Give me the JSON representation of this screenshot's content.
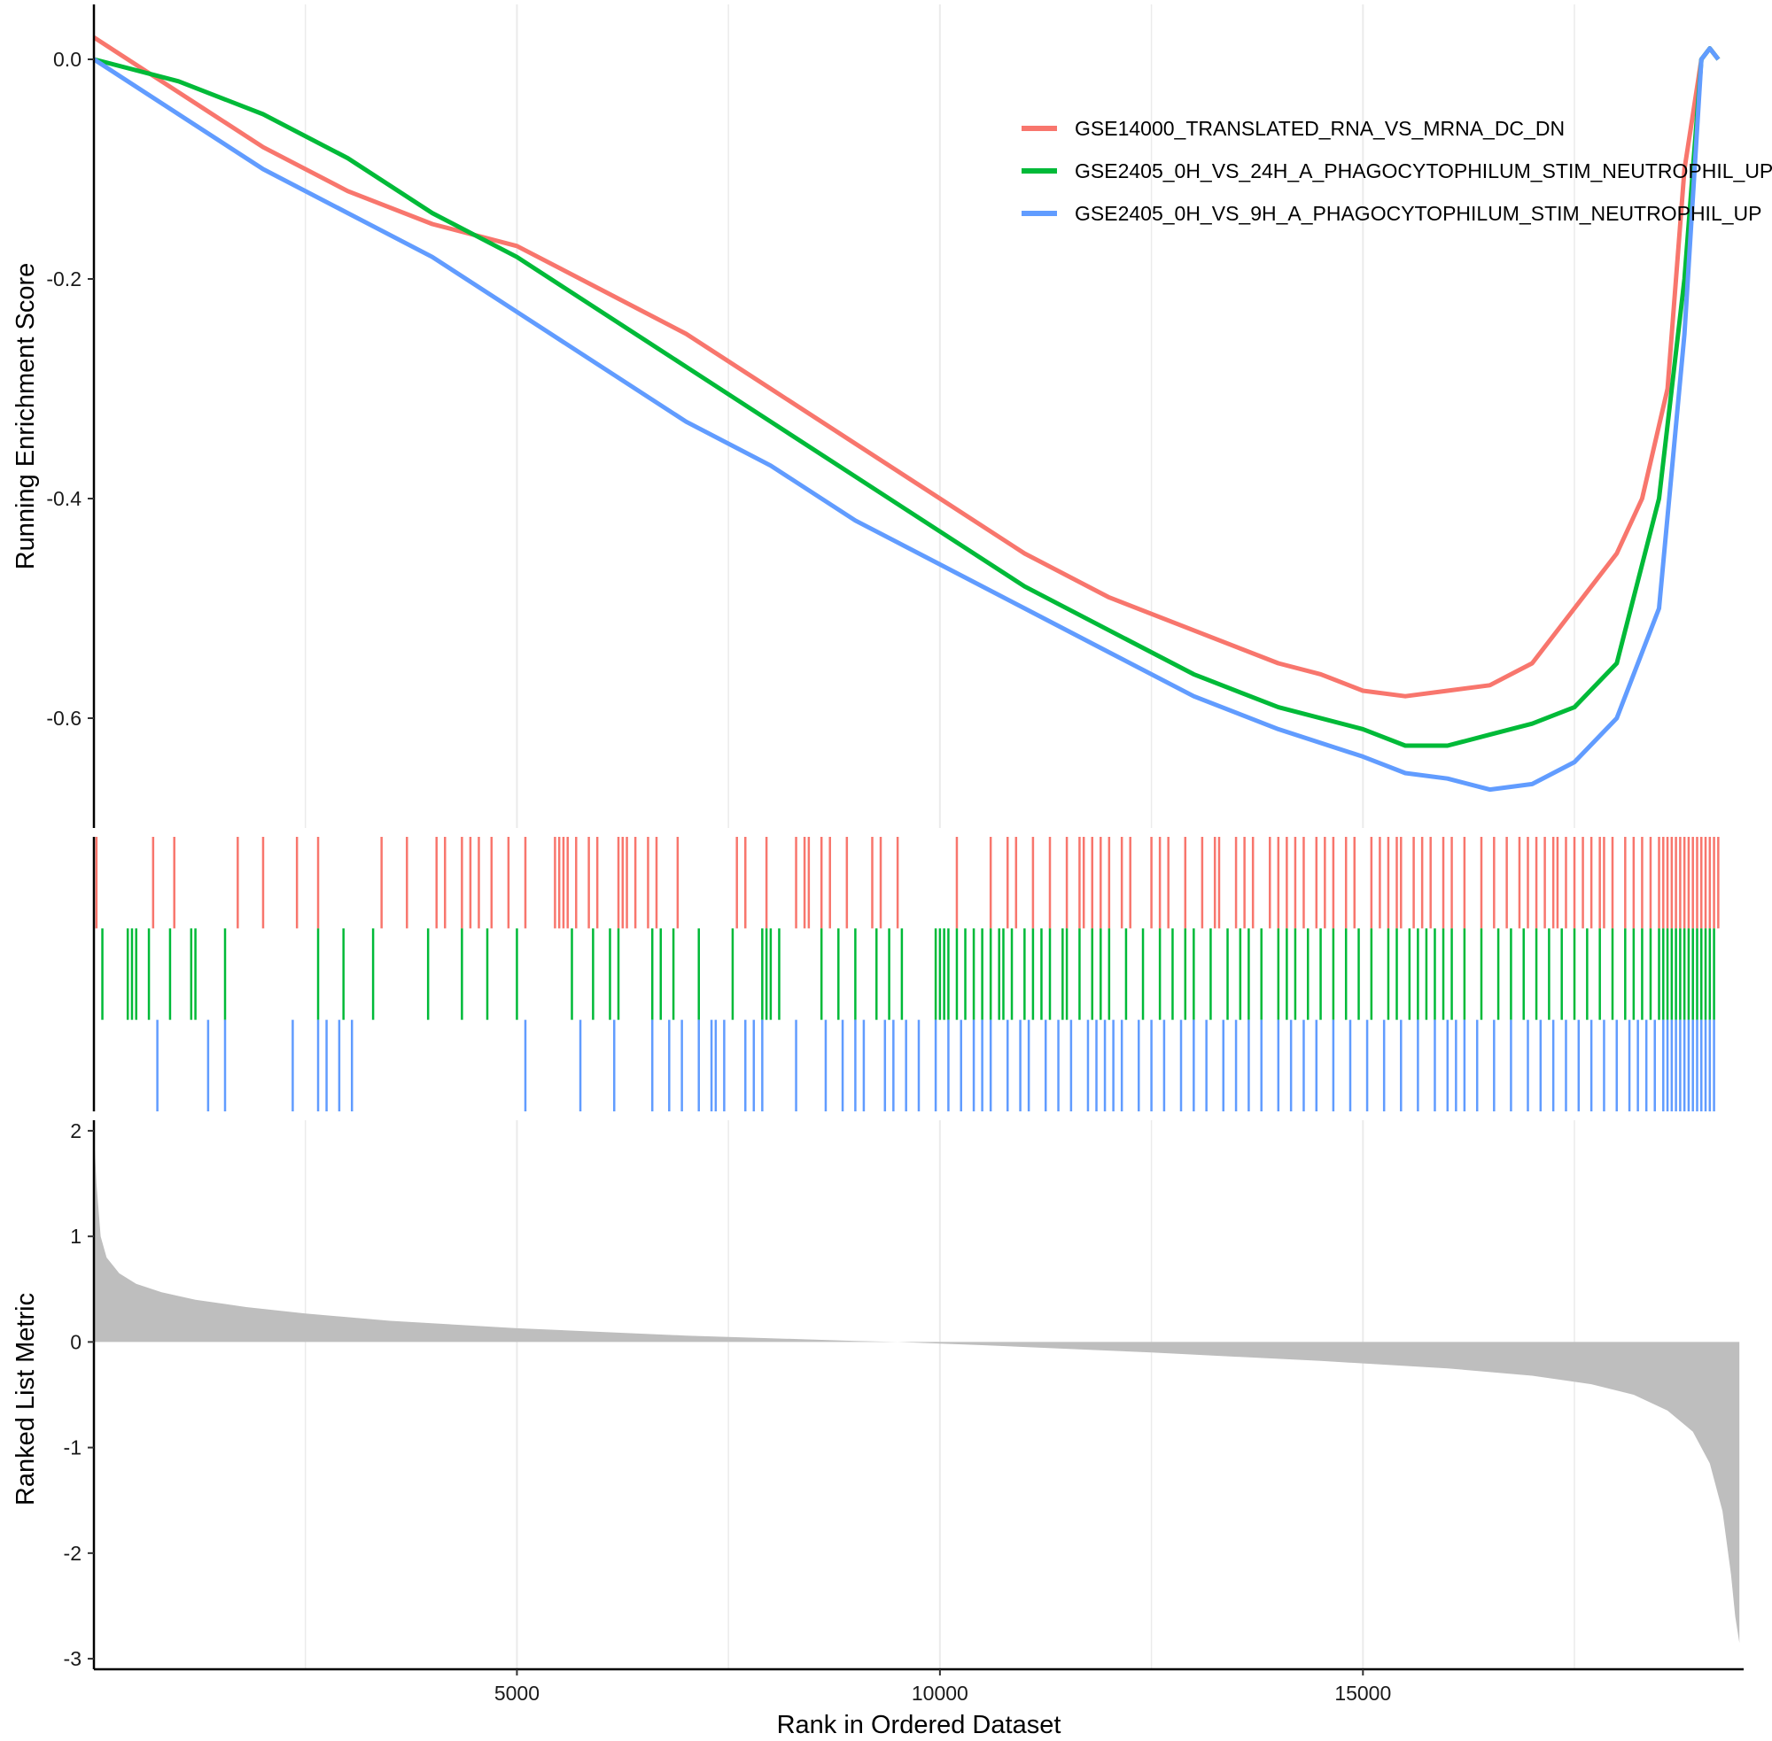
{
  "chart_data": {
    "type": "line",
    "xlabel": "Rank in Ordered Dataset",
    "xlim": [
      0,
      19500
    ],
    "x_ticks": [
      5000,
      10000,
      15000
    ],
    "x_tick_labels": [
      "5000",
      "10000",
      "15000"
    ],
    "grid": "vertical major and minor gridlines",
    "legend_placement": "top-right",
    "panels": [
      {
        "type": "line",
        "ylabel": "Running Enrichment Score",
        "ylim": [
          -0.7,
          0.05
        ],
        "y_ticks": [
          0.0,
          -0.2,
          -0.4,
          -0.6
        ],
        "y_tick_labels": [
          "0.0",
          "-0.2",
          "-0.4",
          "-0.6"
        ],
        "series": [
          {
            "name": "GSE14000_TRANSLATED_RNA_VS_MRNA_DC_DN",
            "color": "#F8766D",
            "x": [
              0,
              1000,
              2000,
              3000,
              4000,
              5000,
              6000,
              7000,
              8000,
              9000,
              10000,
              11000,
              12000,
              13000,
              14000,
              14500,
              15000,
              15500,
              16000,
              16500,
              17000,
              17500,
              18000,
              18300,
              18600,
              18800,
              19000,
              19100,
              19200
            ],
            "y": [
              0.02,
              -0.03,
              -0.08,
              -0.12,
              -0.15,
              -0.17,
              -0.21,
              -0.25,
              -0.3,
              -0.35,
              -0.4,
              -0.45,
              -0.49,
              -0.52,
              -0.55,
              -0.56,
              -0.575,
              -0.58,
              -0.575,
              -0.57,
              -0.55,
              -0.5,
              -0.45,
              -0.4,
              -0.3,
              -0.1,
              0.0,
              0.01,
              0.0
            ]
          },
          {
            "name": "GSE2405_0H_VS_24H_A_PHAGOCYTOPHILUM_STIM_NEUTROPHIL_UP",
            "color": "#00BA38",
            "x": [
              0,
              1000,
              2000,
              3000,
              4000,
              5000,
              6000,
              7000,
              8000,
              9000,
              10000,
              11000,
              12000,
              13000,
              14000,
              15000,
              15500,
              16000,
              16500,
              17000,
              17500,
              18000,
              18500,
              18800,
              19000,
              19100,
              19200
            ],
            "y": [
              0.0,
              -0.02,
              -0.05,
              -0.09,
              -0.14,
              -0.18,
              -0.23,
              -0.28,
              -0.33,
              -0.38,
              -0.43,
              -0.48,
              -0.52,
              -0.56,
              -0.59,
              -0.61,
              -0.625,
              -0.625,
              -0.615,
              -0.605,
              -0.59,
              -0.55,
              -0.4,
              -0.2,
              0.0,
              0.01,
              0.0
            ]
          },
          {
            "name": "GSE2405_0H_VS_9H_A_PHAGOCYTOPHILUM_STIM_NEUTROPHIL_UP",
            "color": "#619CFF",
            "x": [
              0,
              1000,
              2000,
              3000,
              4000,
              5000,
              6000,
              7000,
              8000,
              9000,
              10000,
              11000,
              12000,
              13000,
              14000,
              15000,
              15500,
              16000,
              16500,
              17000,
              17500,
              18000,
              18500,
              18800,
              19000,
              19100,
              19200
            ],
            "y": [
              0.0,
              -0.05,
              -0.1,
              -0.14,
              -0.18,
              -0.23,
              -0.28,
              -0.33,
              -0.37,
              -0.42,
              -0.46,
              -0.5,
              -0.54,
              -0.58,
              -0.61,
              -0.635,
              -0.65,
              -0.655,
              -0.665,
              -0.66,
              -0.64,
              -0.6,
              -0.5,
              -0.25,
              0.0,
              0.01,
              0.0
            ]
          }
        ]
      },
      {
        "type": "rug",
        "description": "gene set hit positions",
        "series": [
          {
            "name": "GSE14000_TRANSLATED_RNA_VS_MRNA_DC_DN",
            "color": "#F8766D",
            "x": [
              30,
              700,
              950,
              1700,
              2000,
              2400,
              2650,
              3400,
              3700,
              4050,
              4150,
              4350,
              4450,
              4550,
              4700,
              4900,
              5100,
              5450,
              5500,
              5550,
              5600,
              5700,
              5850,
              5950,
              6200,
              6250,
              6300,
              6400,
              6550,
              6650,
              6900,
              7600,
              7700,
              7950,
              8300,
              8400,
              8450,
              8600,
              8700,
              8900,
              9200,
              9300,
              9500,
              10200,
              10600,
              10800,
              10900,
              11100,
              11300,
              11500,
              11650,
              11700,
              11800,
              11900,
              12000,
              12150,
              12250,
              12500,
              12600,
              12700,
              12900,
              13100,
              13250,
              13300,
              13500,
              13600,
              13700,
              13900,
              14000,
              14100,
              14200,
              14300,
              14450,
              14550,
              14650,
              14800,
              14900,
              15100,
              15200,
              15300,
              15400,
              15450,
              15600,
              15700,
              15800,
              15950,
              16050,
              16200,
              16400,
              16550,
              16700,
              16850,
              16950,
              17050,
              17150,
              17250,
              17300,
              17400,
              17500,
              17600,
              17700,
              17800,
              17850,
              17950,
              18100,
              18200,
              18300,
              18400,
              18500,
              18550,
              18600,
              18650,
              18700,
              18750,
              18800,
              18850,
              18900,
              18950,
              19000,
              19050,
              19100,
              19150,
              19200
            ]
          },
          {
            "name": "GSE2405_0H_VS_24H_A_PHAGOCYTOPHILUM_STIM_NEUTROPHIL_UP",
            "color": "#00BA38",
            "x": [
              100,
              400,
              450,
              500,
              650,
              900,
              1150,
              1200,
              1550,
              2650,
              2950,
              3300,
              3950,
              4350,
              4650,
              5000,
              5650,
              5900,
              6100,
              6200,
              6600,
              6700,
              6850,
              7150,
              7550,
              7900,
              7950,
              8000,
              8100,
              8600,
              8800,
              9000,
              9250,
              9400,
              9550,
              9950,
              10000,
              10050,
              10100,
              10200,
              10300,
              10400,
              10500,
              10600,
              10700,
              10750,
              10850,
              11000,
              11100,
              11200,
              11300,
              11450,
              11500,
              11650,
              11800,
              11900,
              12000,
              12200,
              12400,
              12600,
              12750,
              12900,
              13000,
              13200,
              13400,
              13550,
              13650,
              13800,
              14000,
              14100,
              14200,
              14350,
              14500,
              14650,
              14800,
              14950,
              15100,
              15300,
              15400,
              15550,
              15650,
              15750,
              15850,
              15950,
              16050,
              16200,
              16400,
              16600,
              16750,
              16900,
              17050,
              17200,
              17350,
              17500,
              17650,
              17800,
              17950,
              18100,
              18200,
              18300,
              18400,
              18500,
              18550,
              18600,
              18650,
              18700,
              18750,
              18800,
              18850,
              18900,
              18950,
              19000,
              19050,
              19100,
              19150
            ]
          },
          {
            "name": "GSE2405_0H_VS_9H_A_PHAGOCYTOPHILUM_STIM_NEUTROPHIL_UP",
            "color": "#619CFF",
            "x": [
              750,
              1350,
              1550,
              2350,
              2650,
              2750,
              2900,
              3050,
              5100,
              5750,
              6150,
              6600,
              6800,
              6950,
              7150,
              7300,
              7350,
              7450,
              7700,
              7800,
              7900,
              8300,
              8650,
              8850,
              9000,
              9100,
              9350,
              9450,
              9600,
              9750,
              9950,
              10100,
              10250,
              10400,
              10500,
              10600,
              10800,
              10950,
              11050,
              11250,
              11400,
              11550,
              11750,
              11850,
              11950,
              12050,
              12150,
              12350,
              12500,
              12650,
              12850,
              13000,
              13150,
              13350,
              13500,
              13650,
              13800,
              14000,
              14150,
              14300,
              14450,
              14650,
              14850,
              15050,
              15250,
              15450,
              15650,
              15850,
              16000,
              16100,
              16200,
              16350,
              16550,
              16750,
              16950,
              17100,
              17250,
              17400,
              17550,
              17700,
              17850,
              18000,
              18150,
              18250,
              18350,
              18450,
              18550,
              18600,
              18650,
              18700,
              18750,
              18800,
              18850,
              18900,
              18950,
              19000,
              19050,
              19100,
              19150
            ]
          }
        ]
      },
      {
        "type": "area",
        "ylabel": "Ranked List Metric",
        "ylim": [
          -3.1,
          2.1
        ],
        "y_ticks": [
          2,
          1,
          0,
          -1,
          -2,
          -3
        ],
        "y_tick_labels": [
          "2",
          "1",
          "0",
          "-1",
          "-2",
          "-3"
        ],
        "fill_color": "#BEBEBE",
        "x": [
          0,
          30,
          80,
          150,
          300,
          500,
          800,
          1200,
          1800,
          2500,
          3500,
          5000,
          7000,
          9000,
          9500,
          10500,
          12500,
          14500,
          16000,
          17000,
          17700,
          18200,
          18600,
          18900,
          19100,
          19250,
          19350,
          19400,
          19450
        ],
        "y": [
          2.0,
          1.5,
          1.0,
          0.8,
          0.65,
          0.55,
          0.47,
          0.4,
          0.33,
          0.27,
          0.2,
          0.13,
          0.06,
          0.01,
          0.0,
          -0.03,
          -0.1,
          -0.18,
          -0.25,
          -0.32,
          -0.4,
          -0.5,
          -0.65,
          -0.85,
          -1.15,
          -1.6,
          -2.2,
          -2.6,
          -2.85
        ]
      }
    ]
  }
}
